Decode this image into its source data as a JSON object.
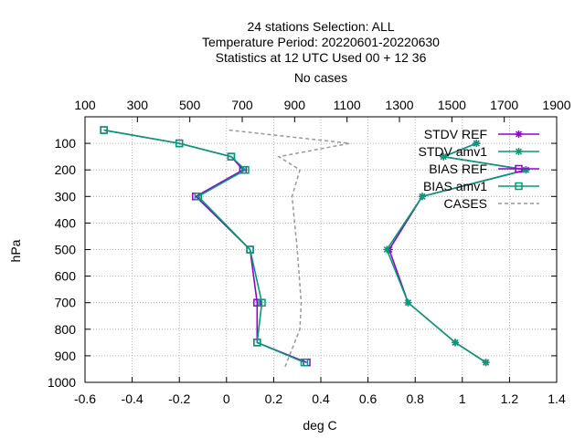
{
  "titles": {
    "line1": "24 stations Selection: ALL",
    "line2": "Temperature  Period: 20220601-20220630",
    "line3": "Statistics at 12 UTC  Used  00  + 12 36",
    "line4": "No cases"
  },
  "chart_data": {
    "type": "line",
    "xlabel": "deg C",
    "ylabel": "hPa",
    "xlim": [
      -0.6,
      1.4
    ],
    "x2lim": [
      100,
      1900
    ],
    "ylim": [
      1000,
      0
    ],
    "y_reversed": true,
    "grid": true,
    "legend_position": "top-right",
    "x_ticks": [
      "-0.6",
      "-0.4",
      "-0.2",
      "0",
      "0.2",
      "0.4",
      "0.6",
      "0.8",
      "1",
      "1.2",
      "1.4"
    ],
    "x2_ticks": [
      "100",
      "300",
      "500",
      "700",
      "900",
      "1100",
      "1300",
      "1500",
      "1700",
      "1900"
    ],
    "y_ticks": [
      "100",
      "200",
      "300",
      "400",
      "500",
      "600",
      "700",
      "800",
      "900",
      "1000"
    ],
    "colors": {
      "ref": "#9400d3",
      "amv1": "#009e73",
      "cases": "#999999"
    },
    "series": [
      {
        "name": "STDV REF",
        "axis": "x1",
        "color": "#9400d3",
        "marker": "star",
        "points": [
          [
            1.06,
            100
          ],
          [
            0.92,
            150
          ],
          [
            1.27,
            200
          ],
          [
            0.83,
            300
          ],
          [
            0.69,
            500
          ],
          [
            0.77,
            700
          ],
          [
            0.97,
            850
          ],
          [
            1.1,
            925
          ]
        ]
      },
      {
        "name": "STDV amv1",
        "axis": "x1",
        "color": "#009e73",
        "marker": "star",
        "points": [
          [
            1.06,
            100
          ],
          [
            0.92,
            150
          ],
          [
            1.27,
            200
          ],
          [
            0.83,
            300
          ],
          [
            0.68,
            500
          ],
          [
            0.77,
            700
          ],
          [
            0.97,
            850
          ],
          [
            1.1,
            925
          ]
        ]
      },
      {
        "name": "BIAS REF",
        "axis": "x1",
        "color": "#9400d3",
        "marker": "square",
        "points": [
          [
            -0.52,
            50
          ],
          [
            -0.2,
            100
          ],
          [
            0.02,
            150
          ],
          [
            0.07,
            200
          ],
          [
            -0.13,
            300
          ],
          [
            0.1,
            500
          ],
          [
            0.13,
            700
          ],
          [
            0.13,
            850
          ],
          [
            0.34,
            925
          ]
        ]
      },
      {
        "name": "BIAS amv1",
        "axis": "x1",
        "color": "#009e73",
        "marker": "square",
        "points": [
          [
            -0.52,
            50
          ],
          [
            -0.2,
            100
          ],
          [
            0.02,
            150
          ],
          [
            0.08,
            200
          ],
          [
            -0.12,
            300
          ],
          [
            0.1,
            500
          ],
          [
            0.15,
            700
          ],
          [
            0.13,
            850
          ],
          [
            0.33,
            925
          ]
        ]
      },
      {
        "name": "CASES",
        "axis": "x2",
        "color": "#999999",
        "marker": "none",
        "dashed": true,
        "points": [
          [
            650,
            50
          ],
          [
            1110,
            100
          ],
          [
            840,
            150
          ],
          [
            920,
            200
          ],
          [
            890,
            300
          ],
          [
            910,
            500
          ],
          [
            925,
            700
          ],
          [
            920,
            800
          ],
          [
            880,
            900
          ],
          [
            860,
            950
          ]
        ]
      }
    ]
  }
}
